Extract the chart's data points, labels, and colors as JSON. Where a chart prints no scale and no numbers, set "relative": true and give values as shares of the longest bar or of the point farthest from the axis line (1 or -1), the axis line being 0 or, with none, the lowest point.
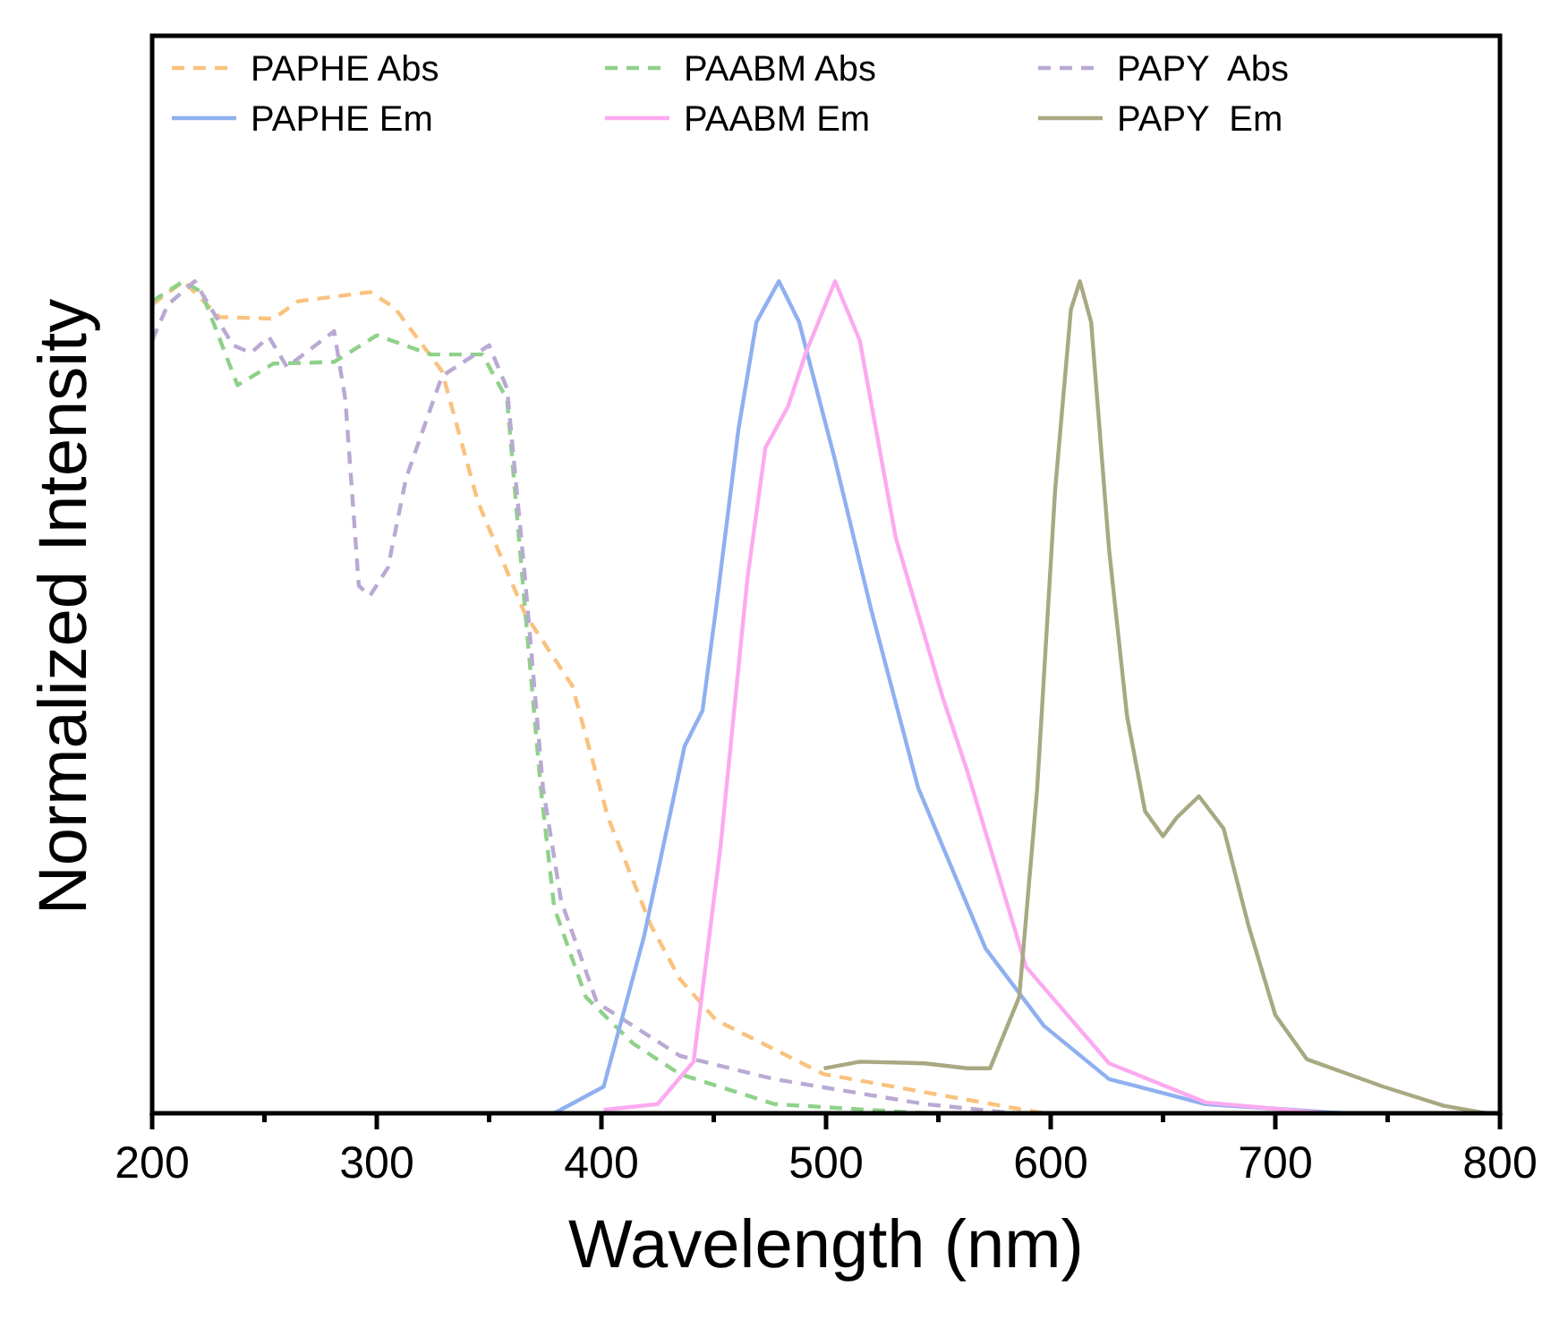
{
  "chart_data": {
    "type": "line",
    "relative": true,
    "xlabel": "Wavelength (nm)",
    "ylabel": "Normalized Intensity",
    "xlim": [
      200,
      800
    ],
    "xticks": [
      200,
      {
        "value": 250,
        "label": null
      },
      300,
      {
        "value": 350,
        "label": null
      },
      400,
      {
        "value": 450,
        "label": null
      },
      500,
      {
        "value": 550,
        "label": null
      },
      600,
      {
        "value": 650,
        "label": null
      },
      700,
      {
        "value": 750,
        "label": null
      },
      800
    ],
    "legend": "top",
    "grid": false,
    "tick_labels": "x",
    "series": [
      {
        "name": "PAPHE Abs",
        "color": "#f9c27e",
        "line_style": "dashed",
        "x": [
          200,
          214,
          230,
          254,
          265,
          297,
          308,
          329,
          345,
          366,
          387,
          403,
          422,
          435,
          451,
          499,
          557,
          597
        ],
        "values": [
          0.972,
          1.0,
          0.957,
          0.955,
          0.976,
          0.987,
          0.968,
          0.892,
          0.735,
          0.6,
          0.514,
          0.355,
          0.226,
          0.161,
          0.112,
          0.047,
          0.019,
          0
        ]
      },
      {
        "name": "PAABM Abs",
        "color": "#8fd18a",
        "line_style": "dashed",
        "x": [
          200,
          214,
          222,
          238,
          254,
          281,
          300,
          324,
          347,
          358,
          366,
          373,
          379,
          393,
          414,
          435,
          477,
          544
        ],
        "values": [
          0.976,
          1.0,
          0.987,
          0.875,
          0.901,
          0.903,
          0.935,
          0.912,
          0.912,
          0.858,
          0.606,
          0.391,
          0.247,
          0.14,
          0.084,
          0.047,
          0.011,
          0
        ]
      },
      {
        "name": "PAPY  Abs",
        "color": "#b9a9d3",
        "line_style": "dashed",
        "x": [
          200,
          207,
          219,
          236,
          244,
          252,
          260,
          281,
          286,
          292,
          297,
          305,
          313,
          329,
          350,
          358,
          366,
          374,
          382,
          398,
          435,
          477,
          544,
          584
        ],
        "values": [
          0.929,
          0.972,
          1.0,
          0.923,
          0.914,
          0.933,
          0.897,
          0.94,
          0.858,
          0.634,
          0.622,
          0.656,
          0.763,
          0.886,
          0.923,
          0.871,
          0.643,
          0.391,
          0.256,
          0.133,
          0.069,
          0.041,
          0.011,
          0
        ]
      },
      {
        "name": "PAPHE Em",
        "color": "#8fb0f0",
        "line_style": "solid",
        "x": [
          379,
          401,
          419,
          437,
          445,
          451,
          461,
          469,
          479,
          488,
          504,
          520,
          541,
          571,
          597,
          626,
          669,
          730
        ],
        "values": [
          0,
          0.032,
          0.213,
          0.441,
          0.484,
          0.606,
          0.822,
          0.951,
          1.0,
          0.951,
          0.785,
          0.606,
          0.391,
          0.198,
          0.105,
          0.041,
          0.011,
          0
        ]
      },
      {
        "name": "PAABM Em",
        "color": "#fcaaf0",
        "line_style": "solid",
        "x": [
          401,
          425,
          441,
          453,
          465,
          473,
          483,
          491,
          504,
          515,
          531,
          552,
          563,
          573,
          589,
          626,
          669,
          722
        ],
        "values": [
          0.004,
          0.011,
          0.062,
          0.32,
          0.643,
          0.8,
          0.849,
          0.914,
          1.0,
          0.929,
          0.692,
          0.499,
          0.41,
          0.32,
          0.176,
          0.06,
          0.013,
          0
        ]
      },
      {
        "name": "PAPY  Em",
        "color": "#a8a882",
        "line_style": "solid",
        "x": [
          499,
          515,
          544,
          563,
          573,
          586,
          594,
          602,
          609,
          613,
          618,
          626,
          634,
          642,
          650,
          656,
          666,
          677,
          688,
          700,
          714,
          748,
          775,
          794
        ],
        "values": [
          0.054,
          0.062,
          0.06,
          0.054,
          0.054,
          0.14,
          0.391,
          0.75,
          0.966,
          1.0,
          0.951,
          0.677,
          0.477,
          0.363,
          0.333,
          0.355,
          0.381,
          0.342,
          0.226,
          0.118,
          0.065,
          0.032,
          0.009,
          0
        ]
      }
    ]
  }
}
